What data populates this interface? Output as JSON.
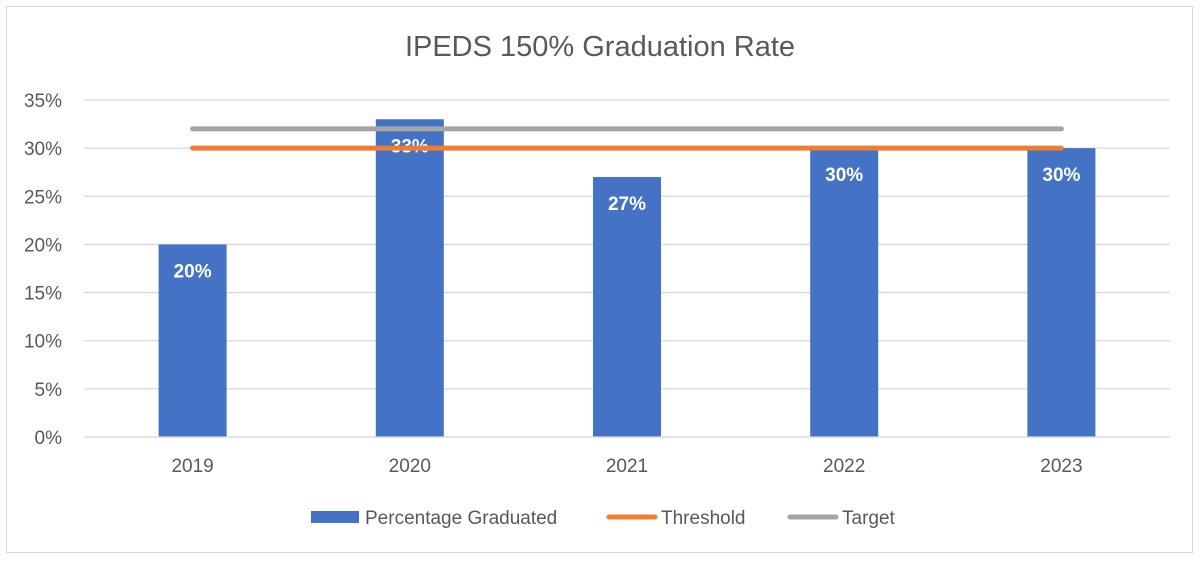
{
  "chart_data": {
    "type": "bar",
    "title": "IPEDS 150% Graduation Rate",
    "xlabel": "",
    "ylabel": "",
    "categories": [
      "2019",
      "2020",
      "2021",
      "2022",
      "2023"
    ],
    "ylim": [
      0,
      35
    ],
    "yticks": [
      0,
      5,
      10,
      15,
      20,
      25,
      30,
      35
    ],
    "ytick_labels": [
      "0%",
      "5%",
      "10%",
      "15%",
      "20%",
      "25%",
      "30%",
      "35%"
    ],
    "grid": true,
    "legend_position": "bottom",
    "series": [
      {
        "name": "Percentage Graduated",
        "type": "bar",
        "color": "#4472C4",
        "values": [
          20,
          33,
          27,
          30,
          30
        ],
        "labels": [
          "20%",
          "33%",
          "27%",
          "30%",
          "30%"
        ]
      },
      {
        "name": "Threshold",
        "type": "line",
        "color": "#ED7D31",
        "values": [
          30,
          30,
          30,
          30,
          30
        ]
      },
      {
        "name": "Target",
        "type": "line",
        "color": "#A5A5A5",
        "values": [
          32,
          32,
          32,
          32,
          32
        ]
      }
    ]
  }
}
